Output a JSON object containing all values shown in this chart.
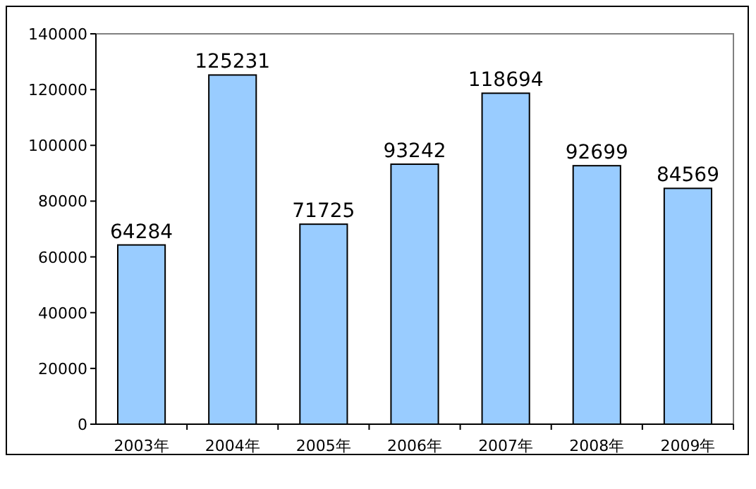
{
  "chart_data": {
    "type": "bar",
    "categories": [
      "2003年",
      "2004年",
      "2005年",
      "2006年",
      "2007年",
      "2008年",
      "2009年"
    ],
    "values": [
      64284,
      125231,
      71725,
      93242,
      118694,
      92699,
      84569
    ],
    "color": "#99ccff",
    "ylim": [
      0,
      140000
    ],
    "yticks": [
      0,
      20000,
      40000,
      60000,
      80000,
      100000,
      120000,
      140000
    ],
    "data_labels": true,
    "grid": false
  }
}
